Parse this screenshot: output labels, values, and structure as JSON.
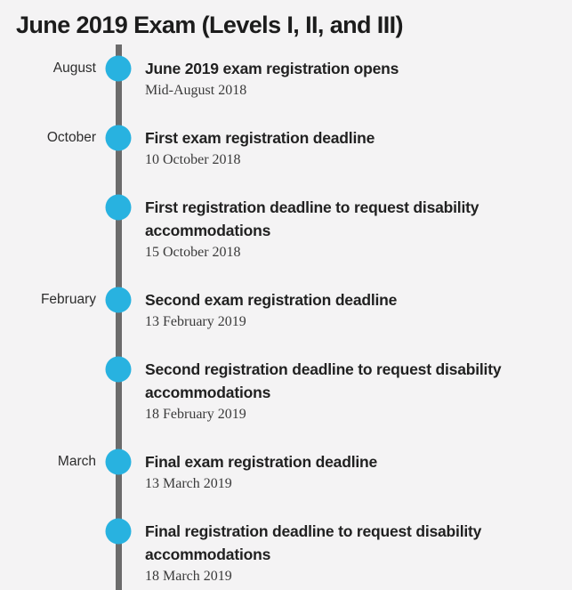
{
  "page": {
    "title": "June 2019 Exam (Levels I, II, and III)"
  },
  "colors": {
    "background": "#f4f3f4",
    "accent_dot": "#28b2e0",
    "timeline_line": "#6b6b6b",
    "heading_text": "#1c1c1c",
    "body_text": "#212121",
    "date_text": "#3a3a3a"
  },
  "timeline": {
    "events": [
      {
        "month": "August",
        "title": "June 2019 exam registration opens",
        "date": "Mid-August 2018"
      },
      {
        "month": "October",
        "title": "First exam registration deadline",
        "date": "10 October 2018"
      },
      {
        "month": "",
        "title": "First registration deadline to request disability accommodations",
        "date": "15 October 2018"
      },
      {
        "month": "February",
        "title": "Second exam registration deadline",
        "date": "13 February 2019"
      },
      {
        "month": "",
        "title": "Second registration deadline to request disability accommodations",
        "date": "18 February 2019"
      },
      {
        "month": "March",
        "title": "Final exam registration deadline",
        "date": "13 March 2019"
      },
      {
        "month": "",
        "title": "Final registration deadline to request disability accommodations",
        "date": "18 March 2019"
      }
    ]
  }
}
